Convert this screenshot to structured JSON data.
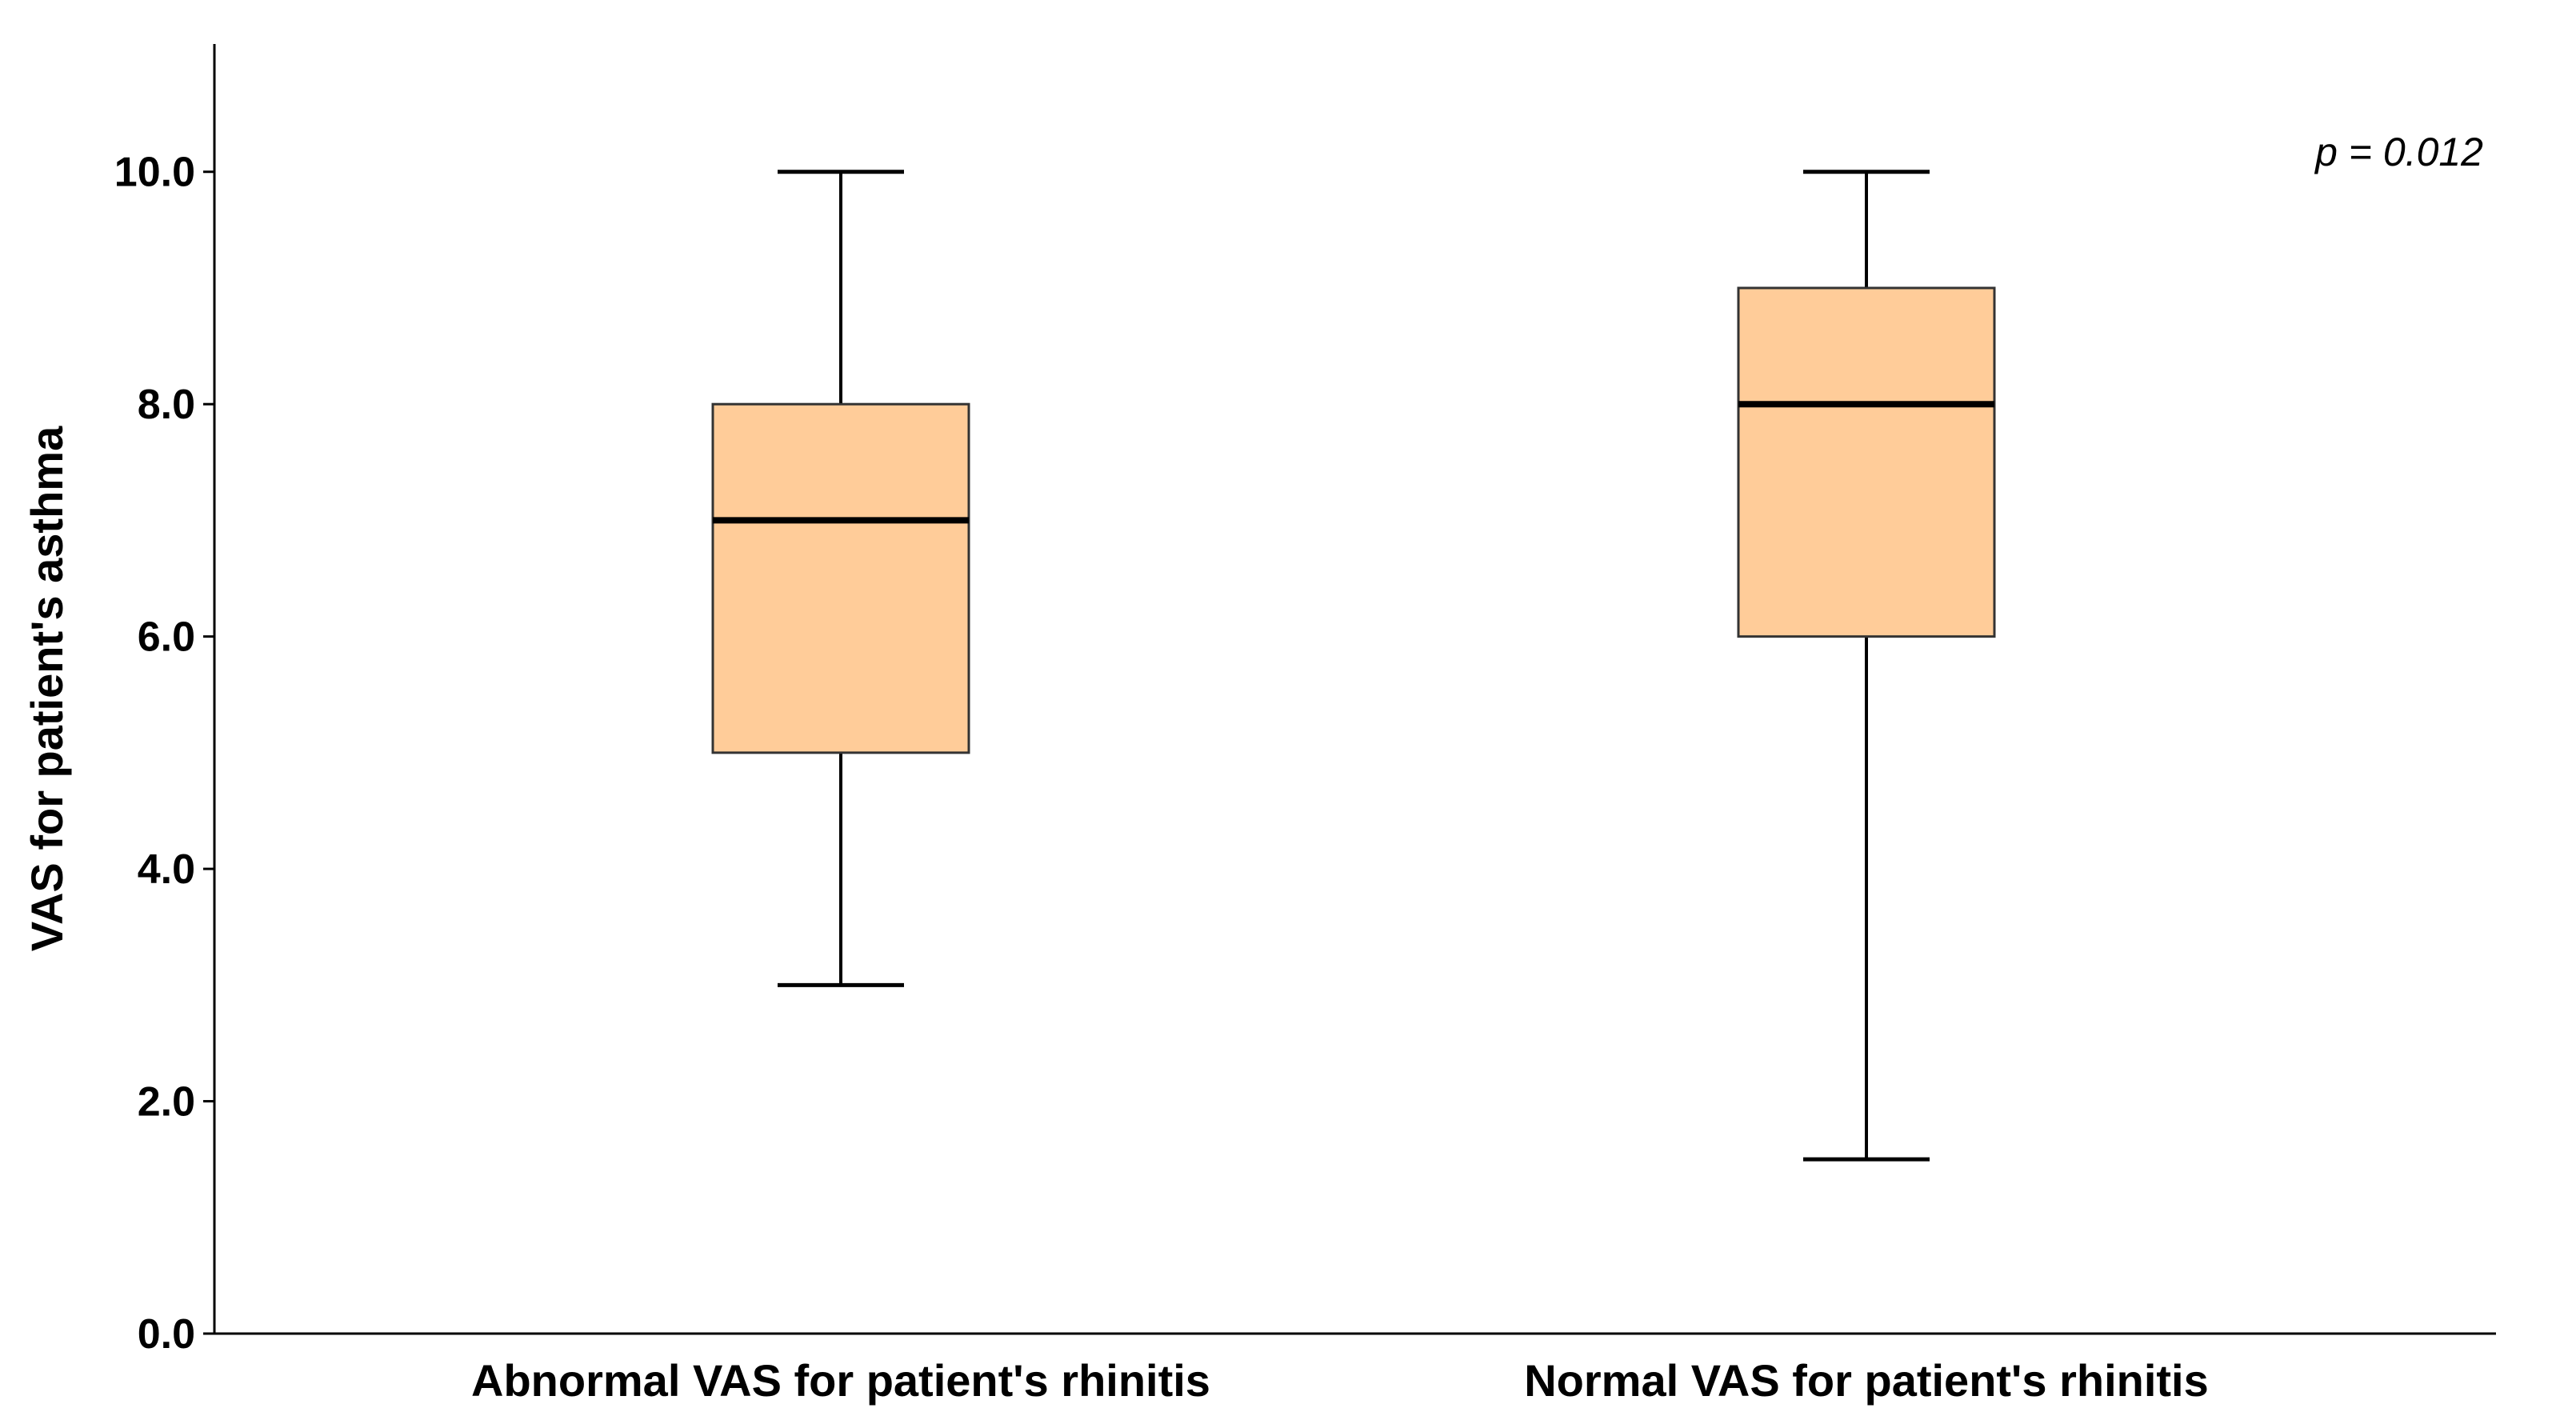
{
  "chart_data": {
    "type": "boxplot",
    "ylabel": "VAS for patient's asthma",
    "xlabel": "",
    "ylim": [
      0,
      11.1
    ],
    "yticks": [
      0.0,
      2.0,
      4.0,
      6.0,
      8.0,
      10.0
    ],
    "ytick_labels": [
      "0.0",
      "2.0",
      "4.0",
      "6.0",
      "8.0",
      "10.0"
    ],
    "grid": false,
    "box_color": "#FFCC99",
    "categories": [
      "Abnormal VAS for patient's rhinitis",
      "Normal VAS for patient's rhinitis"
    ],
    "boxes": [
      {
        "category": "Abnormal VAS for patient's rhinitis",
        "min": 3.0,
        "q1": 5.0,
        "median": 7.0,
        "q3": 8.0,
        "max": 10.0
      },
      {
        "category": "Normal VAS for patient's rhinitis",
        "min": 1.5,
        "q1": 6.0,
        "median": 8.0,
        "q3": 9.0,
        "max": 10.0
      }
    ],
    "annotations": [
      "p = 0.012"
    ]
  }
}
